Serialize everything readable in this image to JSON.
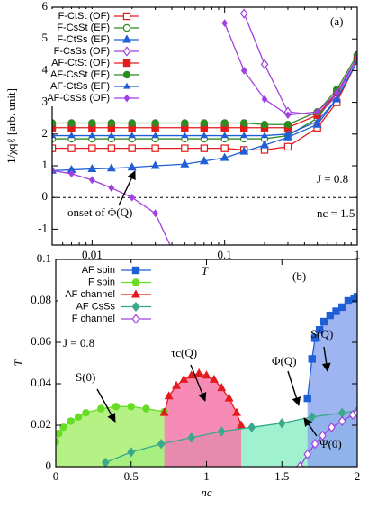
{
  "chart_data": [
    {
      "type": "line",
      "xlog": true,
      "xlabel": "T",
      "ylabel": "1/χqℓ  [arb. unit]",
      "annotations": [
        "(a)",
        "J = 0.8",
        "nc = 1.5",
        "onset of Φ(Q)"
      ],
      "xlim": [
        0.005,
        1
      ],
      "ylim": [
        -1.5,
        6
      ],
      "xticks": [
        0.01,
        0.1,
        1
      ],
      "yticks": [
        -1,
        0,
        1,
        2,
        3,
        4,
        5,
        6
      ],
      "x": [
        0.005,
        0.007,
        0.01,
        0.014,
        0.02,
        0.03,
        0.05,
        0.07,
        0.1,
        0.14,
        0.2,
        0.3,
        0.5,
        0.7,
        1.0
      ],
      "series": [
        {
          "name": "F-CtSt (OF)",
          "color": "#e41a1c",
          "marker": "square",
          "filled": false,
          "values": [
            1.55,
            1.55,
            1.55,
            1.55,
            1.55,
            1.55,
            1.55,
            1.55,
            1.55,
            1.5,
            1.5,
            1.6,
            2.2,
            3.0,
            4.3
          ]
        },
        {
          "name": "F-CsSt (EF)",
          "color": "#2e8b22",
          "marker": "circle",
          "filled": false,
          "values": [
            1.85,
            1.85,
            1.85,
            1.85,
            1.85,
            1.85,
            1.85,
            1.85,
            1.85,
            1.85,
            1.85,
            1.95,
            2.5,
            3.3,
            4.4
          ]
        },
        {
          "name": "F-CtSs (EF)",
          "color": "#1f5fd6",
          "marker": "triangle",
          "filled": true,
          "values": [
            0.85,
            0.87,
            0.9,
            0.92,
            0.95,
            1.0,
            1.05,
            1.15,
            1.25,
            1.45,
            1.65,
            1.9,
            2.3,
            3.1,
            4.3
          ]
        },
        {
          "name": "F-CsSs (OF)",
          "color": "#a040e0",
          "marker": "diamond",
          "filled": false,
          "values": [
            null,
            null,
            null,
            null,
            null,
            null,
            null,
            null,
            null,
            5.8,
            4.2,
            2.7,
            2.6,
            3.2,
            4.4
          ]
        },
        {
          "name": "AF-CtSt (OF)",
          "color": "#e41a1c",
          "marker": "square",
          "filled": true,
          "values": [
            2.2,
            2.2,
            2.2,
            2.2,
            2.2,
            2.2,
            2.2,
            2.2,
            2.2,
            2.2,
            2.2,
            2.2,
            2.6,
            3.3,
            4.4
          ]
        },
        {
          "name": "AF-CsSt (EF)",
          "color": "#2e8b22",
          "marker": "circle",
          "filled": true,
          "values": [
            2.35,
            2.35,
            2.35,
            2.35,
            2.35,
            2.35,
            2.35,
            2.35,
            2.35,
            2.35,
            2.3,
            2.3,
            2.7,
            3.4,
            4.5
          ]
        },
        {
          "name": "AF-CtSs (EF)",
          "color": "#1f5fd6",
          "marker": "triangle",
          "filled": true,
          "small": true,
          "values": [
            1.95,
            1.95,
            1.95,
            1.95,
            1.95,
            1.95,
            1.95,
            1.95,
            1.95,
            1.95,
            1.95,
            2.0,
            2.4,
            3.1,
            4.3
          ]
        },
        {
          "name": "AF-CsSs (OF)",
          "color": "#a040e0",
          "marker": "diamond",
          "filled": true,
          "small": true,
          "values": [
            0.85,
            0.75,
            0.55,
            0.3,
            0.0,
            -0.5,
            -2.5,
            null,
            5.5,
            4.0,
            3.1,
            2.6,
            2.7,
            3.3,
            4.4
          ]
        }
      ]
    },
    {
      "type": "line",
      "xlog": false,
      "xlabel": "nc",
      "ylabel": "T",
      "annotations": [
        "(b)",
        "J = 0.8",
        "S(Q)",
        "τc(Q)",
        "Φ(Q)",
        "S(0)",
        "Ψ(0)"
      ],
      "xlim": [
        0,
        2
      ],
      "ylim": [
        0,
        0.1
      ],
      "xticks": [
        0,
        0.5,
        1,
        1.5,
        2
      ],
      "yticks": [
        0,
        0.02,
        0.04,
        0.06,
        0.08,
        0.1
      ],
      "series": [
        {
          "name": "AF spin",
          "color": "#1f5fd6",
          "fill": "#8ea8f0",
          "marker": "square",
          "filled": true,
          "x": [
            1.67,
            1.7,
            1.72,
            1.75,
            1.78,
            1.82,
            1.86,
            1.9,
            1.94,
            1.98,
            2.0
          ],
          "values": [
            0.033,
            0.052,
            0.062,
            0.066,
            0.07,
            0.073,
            0.075,
            0.077,
            0.08,
            0.081,
            0.082
          ]
        },
        {
          "name": "F spin",
          "color": "#66dd22",
          "fill": "#a8ee70",
          "marker": "circle",
          "filled": true,
          "x": [
            0,
            0.02,
            0.05,
            0.1,
            0.15,
            0.2,
            0.3,
            0.4,
            0.5,
            0.6,
            0.72
          ],
          "values": [
            0.012,
            0.016,
            0.019,
            0.022,
            0.024,
            0.026,
            0.028,
            0.029,
            0.029,
            0.028,
            0.0265
          ]
        },
        {
          "name": "AF channel",
          "color": "#e41a1c",
          "fill": "#f477a8",
          "marker": "triangle",
          "filled": true,
          "x": [
            0.72,
            0.75,
            0.8,
            0.85,
            0.9,
            0.95,
            1.0,
            1.05,
            1.1,
            1.15,
            1.2,
            1.23
          ],
          "values": [
            0.026,
            0.034,
            0.039,
            0.042,
            0.044,
            0.045,
            0.044,
            0.042,
            0.038,
            0.033,
            0.026,
            0.02
          ]
        },
        {
          "name": "AF CsSs",
          "color": "#3aa88a",
          "fill": "#8eefc8",
          "marker": "diamond",
          "filled": true,
          "x": [
            0.33,
            0.5,
            0.7,
            0.9,
            1.1,
            1.3,
            1.5,
            1.7,
            1.9,
            2.0
          ],
          "values": [
            0.002,
            0.007,
            0.011,
            0.014,
            0.017,
            0.019,
            0.021,
            0.024,
            0.026,
            0.027
          ]
        },
        {
          "name": "F channel",
          "color": "#a040e0",
          "marker": "diamond",
          "filled": false,
          "x": [
            1.62,
            1.67,
            1.72,
            1.77,
            1.83,
            1.9,
            1.97,
            2.0
          ],
          "values": [
            0,
            0.006,
            0.011,
            0.015,
            0.019,
            0.022,
            0.025,
            0.026
          ]
        }
      ]
    }
  ]
}
